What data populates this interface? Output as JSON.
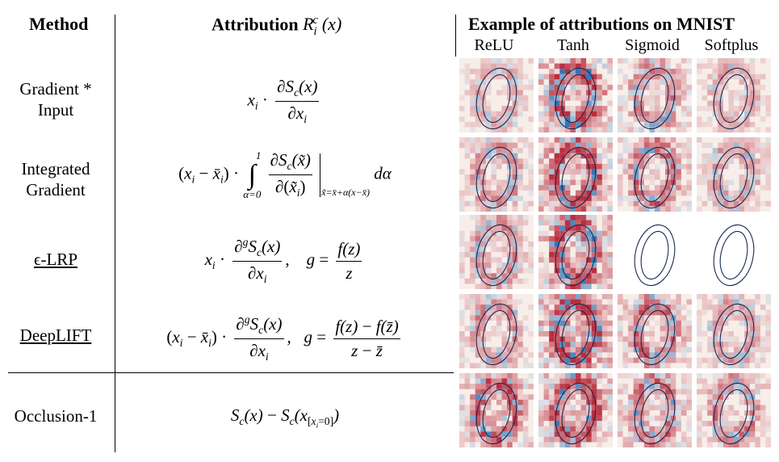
{
  "header": {
    "method": "Method",
    "attribution_prefix": "Attribution",
    "attribution_symbol": "R_i^c(x)",
    "example": "Example of attributions on MNIST"
  },
  "activations": [
    "ReLU",
    "Tanh",
    "Sigmoid",
    "Softplus"
  ],
  "rows": [
    {
      "method_line1": "Gradient *",
      "method_line2": "Input",
      "formula": "x_i · ∂S_c(x)/∂x_i",
      "underlined": false
    },
    {
      "method_line1": "Integrated",
      "method_line2": "Gradient",
      "formula": "(x_i − x̄_i) · ∫_{α=0}^{1} ∂S_c(x̃)/∂(x̃_i) |_{x̃=x̄+α(x−x̄)} dα",
      "underlined": false
    },
    {
      "method_line1": "ϵ-LRP",
      "method_line2": "",
      "formula": "x_i · ∂^g S_c(x)/∂x_i, g = f(z)/z",
      "underlined": true
    },
    {
      "method_line1": "DeepLIFT",
      "method_line2": "",
      "formula": "(x_i − x̄_i) · ∂^g S_c(x)/∂x_i, g = (f(z) − f(z̄))/(z − z̄)",
      "underlined": true
    },
    {
      "method_line1": "Occlusion-1",
      "method_line2": "",
      "formula": "S_c(x) − S_c(x_[x_i=0])",
      "underlined": false
    }
  ],
  "colors": {
    "positive": "#b2182b",
    "negative": "#2166ac",
    "contour": "#1a2a55"
  }
}
